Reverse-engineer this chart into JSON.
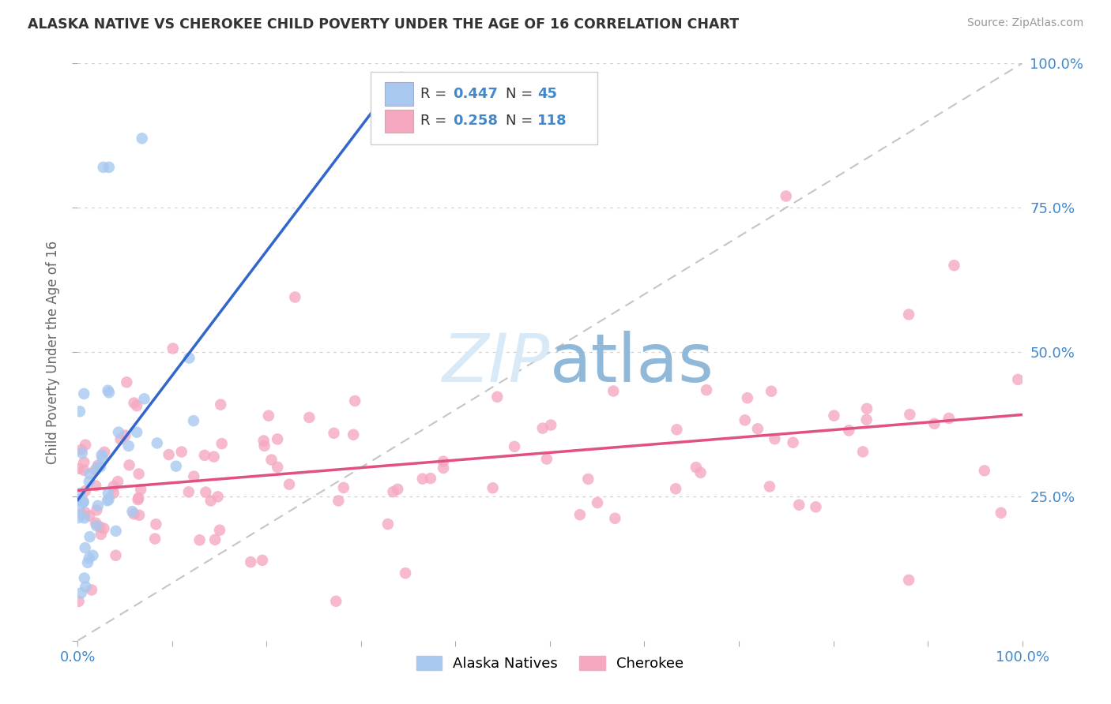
{
  "title": "ALASKA NATIVE VS CHEROKEE CHILD POVERTY UNDER THE AGE OF 16 CORRELATION CHART",
  "source": "Source: ZipAtlas.com",
  "ylabel": "Child Poverty Under the Age of 16",
  "xlim": [
    0,
    1.0
  ],
  "ylim": [
    0,
    1.0
  ],
  "blue_R": 0.447,
  "blue_N": 45,
  "pink_R": 0.258,
  "pink_N": 118,
  "blue_color": "#A8C8F0",
  "pink_color": "#F5A8C0",
  "blue_line_color": "#3366CC",
  "pink_line_color": "#E05080",
  "diagonal_color": "#BBBBBB",
  "title_color": "#333333",
  "axis_label_color": "#4488CC",
  "grid_color": "#CCCCCC",
  "background_color": "#FFFFFF",
  "legend_text_color": "#333333",
  "watermark_color": "#D8EAF8"
}
